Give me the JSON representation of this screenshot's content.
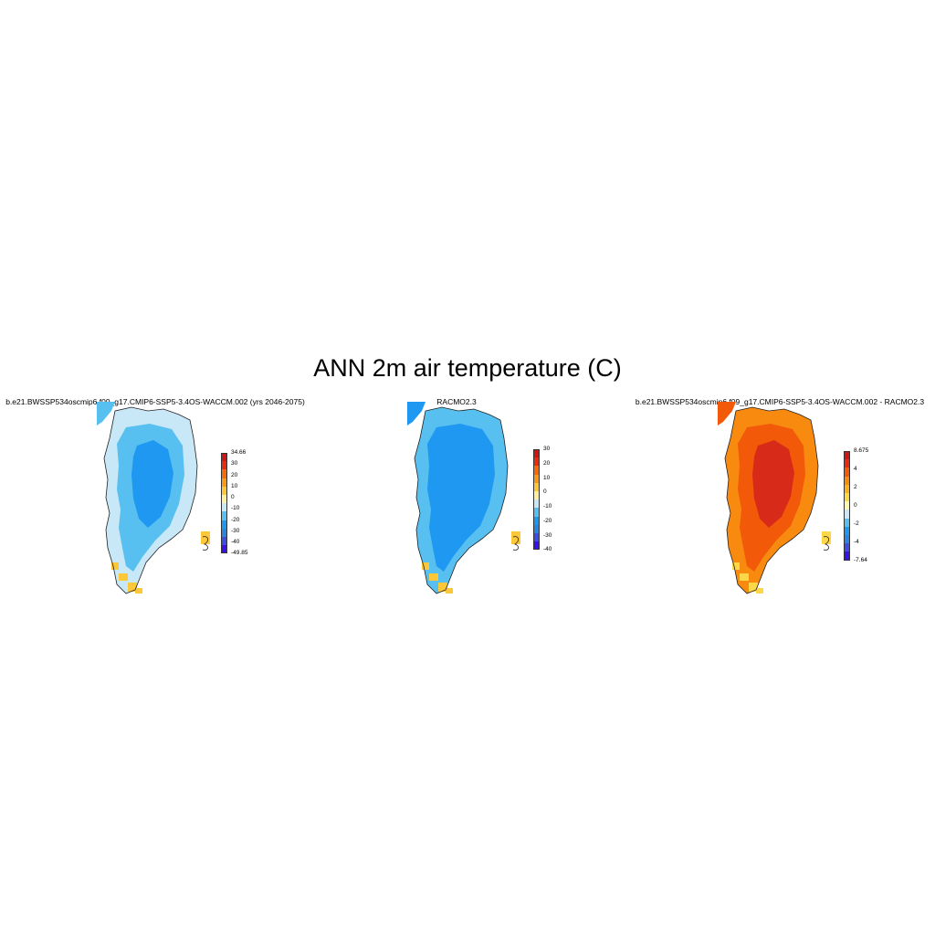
{
  "title": "ANN 2m air temperature (C)",
  "panels": [
    {
      "title": "b.e21.BWSSP534oscmip6.f09_g17.CMIP6-SSP5-3.4OS-WACCM.002 (yrs 2046-2075)",
      "colorbar": {
        "colors": [
          "#3a12e8",
          "#3f4ce0",
          "#2a86dc",
          "#1e98f0",
          "#58c0f0",
          "#c8e8f8",
          "#fff0a0",
          "#fcc838",
          "#f89a16",
          "#f76a0a",
          "#e82a10",
          "#c81818"
        ],
        "labels": [
          "34.66",
          "30",
          "20",
          "10",
          "0",
          "-10",
          "-20",
          "-30",
          "-40",
          "-49.85"
        ]
      },
      "fields": {
        "outer": "#c8e8f8",
        "mid": "#58c0f0",
        "inner": "#1e98f0",
        "coast": "#fcc838"
      }
    },
    {
      "title": "RACMO2.3",
      "colorbar": {
        "colors": [
          "#3a12e8",
          "#3f4ce0",
          "#2a86dc",
          "#1e98f0",
          "#58c0f0",
          "#c8e8f8",
          "#fff0a0",
          "#fcc838",
          "#f89a16",
          "#f76a0a",
          "#e82a10",
          "#c81818"
        ],
        "labels": [
          "30",
          "20",
          "10",
          "0",
          "-10",
          "-20",
          "-30",
          "-40"
        ]
      },
      "fields": {
        "outer": "#58c0f0",
        "mid": "#1e98f0",
        "inner": "#1e98f0",
        "coast": "#fcc838"
      }
    },
    {
      "title": "b.e21.BWSSP534oscmip6.f09_g17.CMIP6-SSP5-3.4OS-WACCM.002 - RACMO2.3",
      "colorbar": {
        "colors": [
          "#3a12e8",
          "#3f4ce0",
          "#2a86dc",
          "#1e98f0",
          "#58c0f0",
          "#c8e8f8",
          "#fff6b0",
          "#fcd848",
          "#fcb020",
          "#f88a10",
          "#f25a0a",
          "#e82a10",
          "#c81818"
        ],
        "labels": [
          "8.675",
          "4",
          "2",
          "0",
          "-2",
          "-4",
          "-7.64"
        ]
      },
      "fields": {
        "outer": "#f88a10",
        "mid": "#f25a0a",
        "inner": "#d82a18",
        "coast": "#fcd848"
      }
    }
  ]
}
